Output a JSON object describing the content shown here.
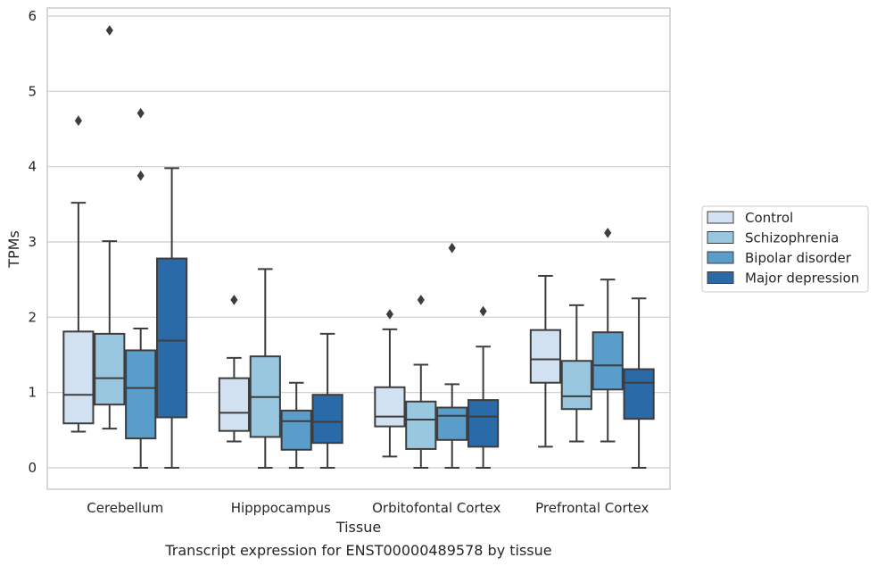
{
  "chart_data": {
    "type": "boxplot",
    "title": "",
    "caption": "Transcript expression for ENST00000489578 by tissue",
    "xlabel": "Tissue",
    "ylabel": "TPMs",
    "ylim": [
      -0.28,
      6.1
    ],
    "yticks": [
      0,
      1,
      2,
      3,
      4,
      5,
      6
    ],
    "grid": "horizontal",
    "legend_position": "right",
    "categories": [
      "Cerebellum",
      "Hipppocampus",
      "Orbitofontal Cortex",
      "Prefrontal Cortex"
    ],
    "series": [
      {
        "name": "Control",
        "color": "#d1e1f1",
        "boxes": [
          {
            "whislo": 0.48,
            "q1": 0.59,
            "med": 0.97,
            "q3": 1.81,
            "whishi": 3.52,
            "fliers": [
              4.61
            ]
          },
          {
            "whislo": 0.35,
            "q1": 0.49,
            "med": 0.73,
            "q3": 1.19,
            "whishi": 1.46,
            "fliers": [
              2.23
            ]
          },
          {
            "whislo": 0.15,
            "q1": 0.55,
            "med": 0.68,
            "q3": 1.07,
            "whishi": 1.84,
            "fliers": [
              2.04
            ]
          },
          {
            "whislo": 0.28,
            "q1": 1.13,
            "med": 1.44,
            "q3": 1.83,
            "whishi": 2.55,
            "fliers": []
          }
        ]
      },
      {
        "name": "Schizophrenia",
        "color": "#9ac7e0",
        "boxes": [
          {
            "whislo": 0.52,
            "q1": 0.84,
            "med": 1.19,
            "q3": 1.78,
            "whishi": 3.01,
            "fliers": [
              5.81
            ]
          },
          {
            "whislo": 0.0,
            "q1": 0.41,
            "med": 0.94,
            "q3": 1.48,
            "whishi": 2.64,
            "fliers": []
          },
          {
            "whislo": 0.0,
            "q1": 0.25,
            "med": 0.64,
            "q3": 0.88,
            "whishi": 1.37,
            "fliers": [
              2.23
            ]
          },
          {
            "whislo": 0.35,
            "q1": 0.78,
            "med": 0.95,
            "q3": 1.42,
            "whishi": 2.16,
            "fliers": []
          }
        ]
      },
      {
        "name": "Bipolar disorder",
        "color": "#5a9cca",
        "boxes": [
          {
            "whislo": 0.0,
            "q1": 0.39,
            "med": 1.06,
            "q3": 1.56,
            "whishi": 1.85,
            "fliers": [
              4.71,
              3.88
            ]
          },
          {
            "whislo": 0.0,
            "q1": 0.24,
            "med": 0.62,
            "q3": 0.76,
            "whishi": 1.13,
            "fliers": []
          },
          {
            "whislo": 0.0,
            "q1": 0.37,
            "med": 0.69,
            "q3": 0.8,
            "whishi": 1.11,
            "fliers": [
              2.92
            ]
          },
          {
            "whislo": 0.35,
            "q1": 1.04,
            "med": 1.36,
            "q3": 1.8,
            "whishi": 2.5,
            "fliers": [
              3.12
            ]
          }
        ]
      },
      {
        "name": "Major depression",
        "color": "#2b6aa8",
        "boxes": [
          {
            "whislo": 0.0,
            "q1": 0.67,
            "med": 1.69,
            "q3": 2.78,
            "whishi": 3.98,
            "fliers": []
          },
          {
            "whislo": 0.0,
            "q1": 0.33,
            "med": 0.61,
            "q3": 0.97,
            "whishi": 1.78,
            "fliers": []
          },
          {
            "whislo": 0.0,
            "q1": 0.28,
            "med": 0.68,
            "q3": 0.9,
            "whishi": 1.61,
            "fliers": [
              2.08
            ]
          },
          {
            "whislo": 0.0,
            "q1": 0.65,
            "med": 1.13,
            "q3": 1.31,
            "whishi": 2.25,
            "fliers": []
          }
        ]
      }
    ]
  }
}
